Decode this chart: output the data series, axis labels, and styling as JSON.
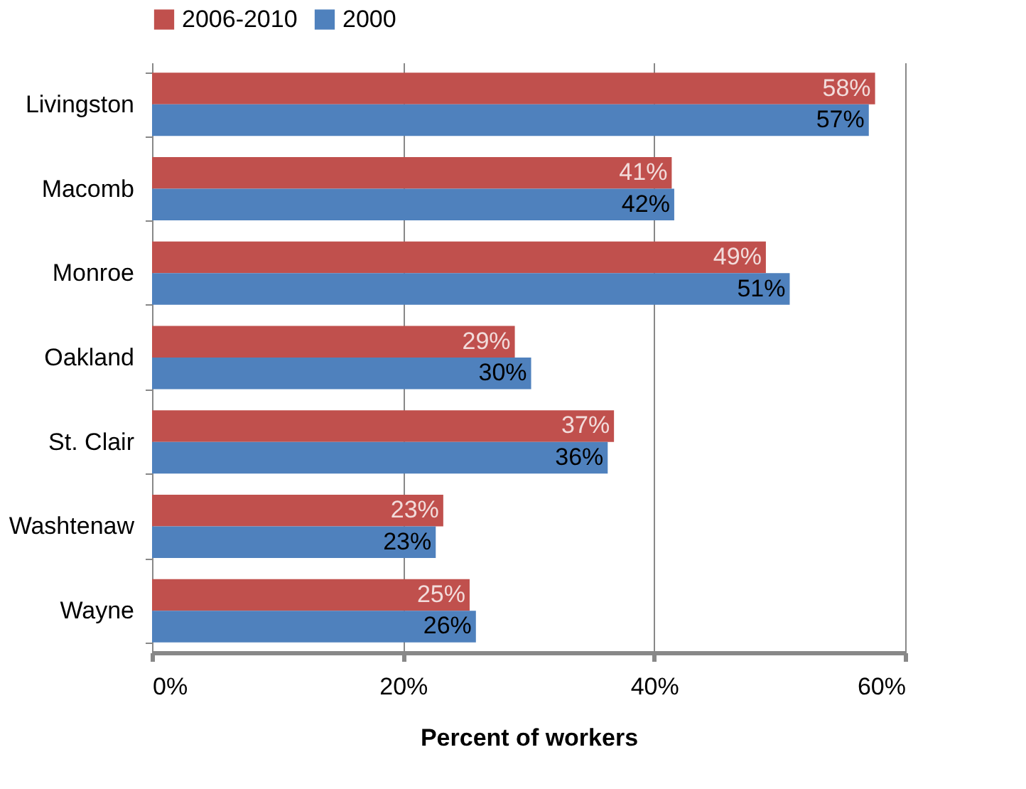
{
  "chart_data": {
    "type": "bar",
    "orientation": "horizontal",
    "xlabel": "Percent of workers",
    "categories": [
      "Livingston",
      "Macomb",
      "Monroe",
      "Oakland",
      "St. Clair",
      "Washtenaw",
      "Wayne"
    ],
    "series": [
      {
        "name": "2006-2010",
        "color": "#c0504d",
        "values": [
          57.6,
          41.4,
          48.9,
          28.9,
          36.8,
          23.2,
          25.3
        ],
        "value_labels": [
          "58%",
          "41%",
          "49%",
          "29%",
          "37%",
          "23%",
          "25%"
        ]
      },
      {
        "name": "2000",
        "color": "#4f81bd",
        "values": [
          57.1,
          41.6,
          50.8,
          30.2,
          36.3,
          22.6,
          25.8
        ],
        "value_labels": [
          "57%",
          "42%",
          "51%",
          "30%",
          "36%",
          "23%",
          "26%"
        ]
      }
    ],
    "xlim": [
      0,
      60
    ],
    "xticks": [
      {
        "value": 0,
        "label": "0%"
      },
      {
        "value": 20,
        "label": "20%"
      },
      {
        "value": 40,
        "label": "40%"
      },
      {
        "value": 60,
        "label": "60%"
      }
    ],
    "grid": "x",
    "legend": "top"
  }
}
